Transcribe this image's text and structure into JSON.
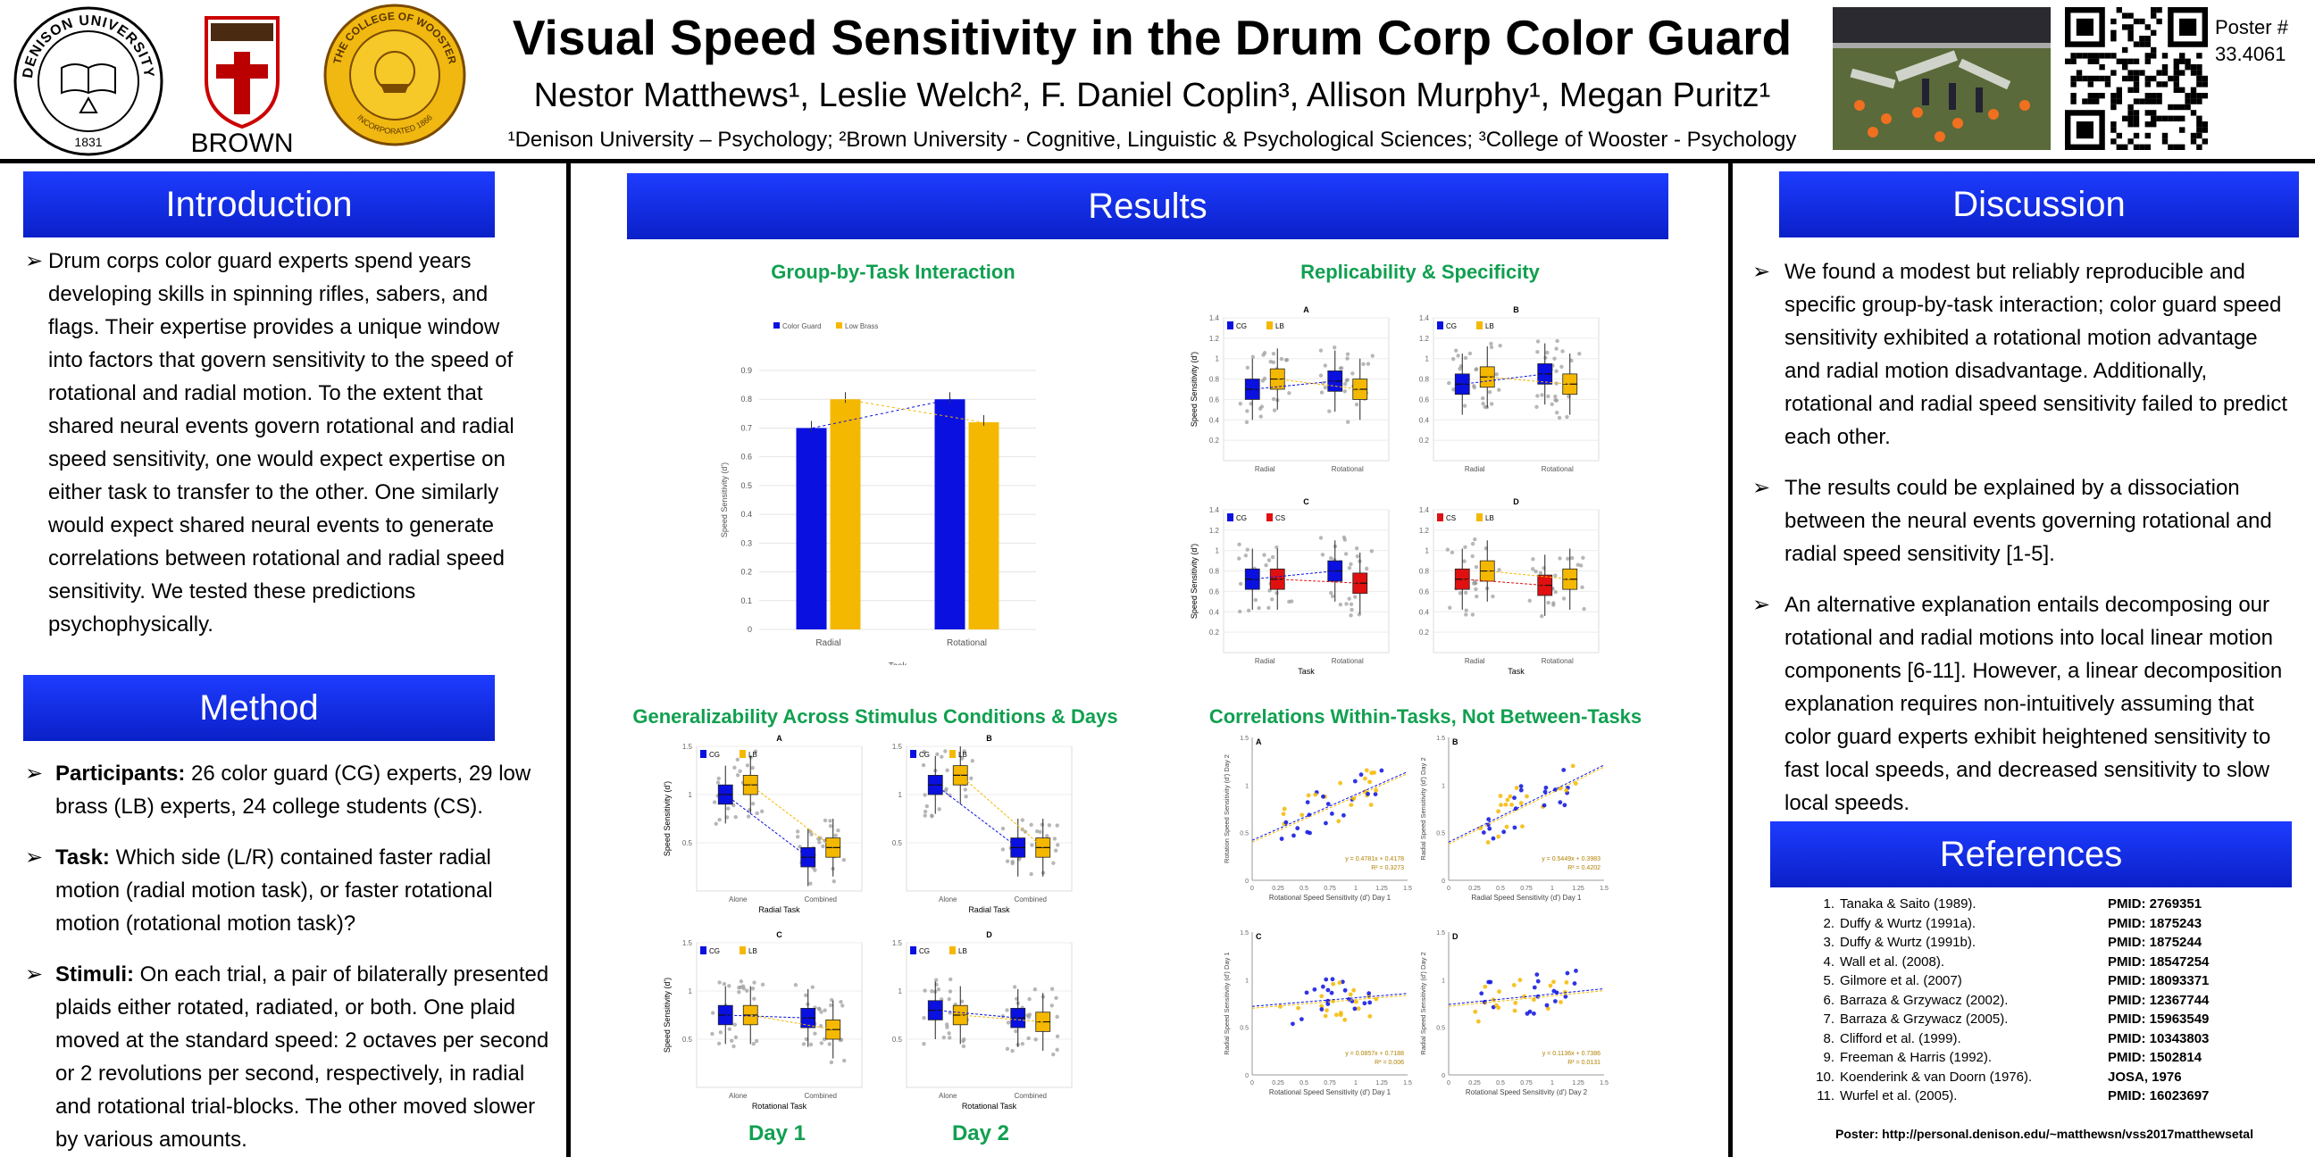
{
  "header": {
    "title": "Visual Speed Sensitivity in the Drum Corp Color Guard",
    "authors": "Nestor Matthews¹, Leslie Welch², F. Daniel Coplin³, Allison Murphy¹, Megan Puritz¹",
    "affiliations": "¹Denison University – Psychology; ²Brown University - Cognitive, Linguistic & Psychological Sciences; ³College of Wooster - Psychology",
    "poster_label": "Poster #",
    "poster_number": "33.4061",
    "logos": {
      "denison_top": "DENISON UNIVERSITY",
      "denison_year": "1831",
      "brown": "BROWN",
      "wooster_top": "THE COLLEGE OF WOOSTER",
      "wooster_bottom": "INCORPORATED 1866"
    }
  },
  "introduction": {
    "heading": "Introduction",
    "text": "Drum corps color guard experts spend years developing skills in spinning rifles, sabers, and flags. Their expertise provides a unique window into factors that govern sensitivity to the speed of rotational and radial motion. To the extent that shared neural events govern rotational and radial speed sensitivity, one would expect expertise on either task to transfer to the other. One similarly would expect shared neural events to generate correlations between rotational and radial speed sensitivity. We tested these predictions psychophysically."
  },
  "method": {
    "heading": "Method",
    "items": [
      {
        "label": "Participants:",
        "text": " 26 color guard (CG) experts, 29 low brass (LB) experts, 24 college students (CS)."
      },
      {
        "label": "Task:",
        "text": " Which side (L/R) contained faster radial motion (radial motion task), or faster rotational motion (rotational motion task)?"
      },
      {
        "label": "Stimuli:",
        "text": " On each trial, a pair of bilaterally presented plaids either rotated, radiated, or both. One plaid moved at the standard speed: 2 octaves per second or 2 revolutions per second, respectively, in radial and rotational trial-blocks. The other moved slower by various amounts."
      }
    ]
  },
  "results": {
    "heading": "Results",
    "group_by_task_title": "Group-by-Task Interaction",
    "replicability_title": "Replicability & Specificity",
    "generalizability_title": "Generalizability Across Stimulus Conditions & Days",
    "correlations_title": "Correlations Within-Tasks, Not Between-Tasks",
    "day1": "Day 1",
    "day2": "Day 2"
  },
  "discussion": {
    "heading": "Discussion",
    "items": [
      "We found a modest but reliably reproducible and specific group-by-task interaction; color guard speed sensitivity exhibited a rotational motion advantage and radial motion disadvantage. Additionally, rotational and radial speed sensitivity failed to predict each other.",
      "The results could be explained by a dissociation between the neural events governing rotational and radial speed sensitivity [1-5].",
      "An alternative explanation entails decomposing our rotational and radial motions into local linear motion components [6-11]. However, a linear decomposition explanation requires non-intuitively assuming that color guard experts exhibit heightened sensitivity to fast local speeds, and decreased sensitivity to slow local speeds."
    ]
  },
  "references": {
    "heading": "References",
    "items": [
      {
        "num": "1.",
        "cite": "Tanaka & Saito (1989).",
        "pmid": "PMID: 2769351"
      },
      {
        "num": "2.",
        "cite": "Duffy & Wurtz (1991a).",
        "pmid": "PMID: 1875243"
      },
      {
        "num": "3.",
        "cite": "Duffy & Wurtz (1991b).",
        "pmid": "PMID: 1875244"
      },
      {
        "num": "4.",
        "cite": "Wall et al. (2008).",
        "pmid": "PMID: 18547254"
      },
      {
        "num": "5.",
        "cite": "Gilmore et al. (2007)",
        "pmid": "PMID: 18093371"
      },
      {
        "num": "6.",
        "cite": "Barraza & Grzywacz (2002).",
        "pmid": "PMID: 12367744"
      },
      {
        "num": "7.",
        "cite": "Barraza & Grzywacz (2005).",
        "pmid": "PMID: 15963549"
      },
      {
        "num": "8.",
        "cite": "Clifford et al. (1999).",
        "pmid": "PMID: 10343803"
      },
      {
        "num": "9.",
        "cite": "Freeman & Harris (1992).",
        "pmid": "PMID: 1502814"
      },
      {
        "num": "10.",
        "cite": "Koenderink & van Doorn (1976).",
        "pmid": "JOSA, 1976"
      },
      {
        "num": "11.",
        "cite": "Wurfel et al. (2005).",
        "pmid": "PMID: 16023697"
      }
    ],
    "footer": "Poster: http://personal.denison.edu/~matthewsn/vss2017matthewsetal"
  },
  "colors": {
    "cg": "#0a10e0",
    "lb": "#f5b800",
    "cs": "#e01010",
    "heading": "#1430ee",
    "green": "#10a050"
  },
  "chart_data": [
    {
      "type": "bar",
      "title": "",
      "categories": [
        "Radial",
        "Rotational"
      ],
      "series": [
        {
          "name": "Color Guard",
          "values": [
            0.7,
            0.8
          ]
        },
        {
          "name": "Low Brass",
          "values": [
            0.8,
            0.72
          ]
        }
      ],
      "xlabel": "Task",
      "ylabel": "Speed Sensitivity (d')",
      "ylim": [
        0,
        0.9
      ],
      "yticks": [
        "0",
        "0.1",
        "0.2",
        "0.3",
        "0.4",
        "0.5",
        "0.6",
        "0.7",
        "0.8",
        "0.9"
      ],
      "legend": "top-left"
    },
    {
      "type": "scatter",
      "title": "",
      "panels": [
        {
          "label": "A",
          "groups": [
            "CG",
            "LB"
          ],
          "categories": [
            "Radial",
            "Rotational"
          ],
          "medians": [
            [
              0.7,
              0.78
            ],
            [
              0.8,
              0.7
            ]
          ]
        },
        {
          "label": "B",
          "groups": [
            "CG",
            "LB"
          ],
          "categories": [
            "Radial",
            "Rotational"
          ],
          "medians": [
            [
              0.75,
              0.85
            ],
            [
              0.82,
              0.75
            ]
          ]
        },
        {
          "label": "C",
          "groups": [
            "CG",
            "CS"
          ],
          "categories": [
            "Radial",
            "Rotational"
          ],
          "medians": [
            [
              0.72,
              0.8
            ],
            [
              0.72,
              0.68
            ]
          ]
        },
        {
          "label": "D",
          "groups": [
            "CS",
            "LB"
          ],
          "categories": [
            "Radial",
            "Rotational"
          ],
          "medians": [
            [
              0.72,
              0.66
            ],
            [
              0.8,
              0.72
            ]
          ]
        }
      ],
      "xlabel": "Task",
      "ylabel": "Speed Sensitivity (d')",
      "ylim": [
        0,
        1.4
      ]
    },
    {
      "type": "scatter",
      "title": "",
      "panels": [
        {
          "label": "A",
          "groups": [
            "CG",
            "LB"
          ],
          "categories": [
            "Alone",
            "Combined"
          ],
          "xlabel": "Radial Task",
          "medians": [
            [
              1.0,
              0.35
            ],
            [
              1.1,
              0.45
            ]
          ]
        },
        {
          "label": "B",
          "groups": [
            "CG",
            "LB"
          ],
          "categories": [
            "Alone",
            "Combined"
          ],
          "xlabel": "Radial Task",
          "medians": [
            [
              1.1,
              0.45
            ],
            [
              1.2,
              0.45
            ]
          ]
        },
        {
          "label": "C",
          "groups": [
            "CG",
            "LB"
          ],
          "categories": [
            "Alone",
            "Combined"
          ],
          "xlabel": "Rotational Task",
          "medians": [
            [
              0.75,
              0.72
            ],
            [
              0.75,
              0.6
            ]
          ]
        },
        {
          "label": "D",
          "groups": [
            "CG",
            "LB"
          ],
          "categories": [
            "Alone",
            "Combined"
          ],
          "xlabel": "Rotational Task",
          "medians": [
            [
              0.8,
              0.72
            ],
            [
              0.75,
              0.68
            ]
          ]
        }
      ],
      "ylabel": "Speed Sensitivity (d')",
      "ylim": [
        0,
        1.5
      ]
    },
    {
      "type": "scatter",
      "title": "",
      "panels": [
        {
          "label": "A",
          "xlabel": "Rotational Speed Sensitivity (d') Day 1",
          "ylabel": "Rotation Speed Sensitivity (d') Day 2",
          "fit_lb": "y = 0.4781x + 0.4178",
          "r2_lb": "R² = 0.3273"
        },
        {
          "label": "B",
          "xlabel": "Radial Speed Sensitivity (d') Day 1",
          "ylabel": "Radial Speed Sensitivity (d') Day 2",
          "fit_lb": "y = 0.5449x + 0.3983",
          "r2_lb": "R² = 0.4202"
        },
        {
          "label": "C",
          "xlabel": "Rotational Speed Sensitivity (d') Day 1",
          "ylabel": "Radial Speed Sensitivity (d') Day 1",
          "fit_lb": "y = 0.0857x + 0.7188",
          "r2_lb": "R² = 0.006"
        },
        {
          "label": "D",
          "xlabel": "Rotational Speed Sensitivity (d') Day 2",
          "ylabel": "Radial Speed Sensitivity (d') Day 2",
          "fit_lb": "y = 0.1136x + 0.7386",
          "r2_lb": "R² = 0.0131"
        }
      ],
      "xlim": [
        0,
        1.5
      ],
      "ylim": [
        0,
        1.5
      ],
      "xticks": [
        "0",
        "0.25",
        "0.5",
        "0.75",
        "1",
        "1.25",
        "1.5"
      ]
    }
  ]
}
